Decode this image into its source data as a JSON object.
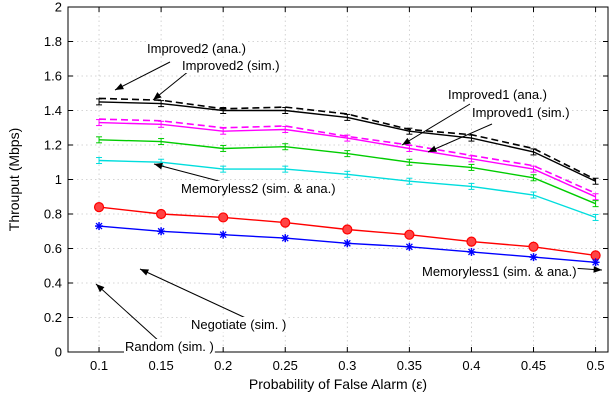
{
  "chart_data": {
    "type": "line",
    "title": "",
    "xlabel": "Probability of False Alarm (ε)",
    "ylabel": "Throuput (Mbps)",
    "xlim": [
      0.075,
      0.51
    ],
    "ylim": [
      0,
      2
    ],
    "x_ticks": [
      "0.1",
      "0.15",
      "0.2",
      "0.25",
      "0.3",
      "0.35",
      "0.4",
      "0.45",
      "0.5"
    ],
    "y_ticks": [
      "0",
      "0.2",
      "0.4",
      "0.6",
      "0.8",
      "1",
      "1.2",
      "1.4",
      "1.6",
      "1.8",
      "2"
    ],
    "grid": true,
    "x": [
      0.1,
      0.15,
      0.2,
      0.25,
      0.3,
      0.35,
      0.4,
      0.45,
      0.5
    ],
    "series": [
      {
        "name": "Improved2 (ana.)",
        "color": "#000000",
        "dash": "dashed",
        "marker": "none",
        "values": [
          1.47,
          1.46,
          1.41,
          1.42,
          1.38,
          1.29,
          1.26,
          1.18,
          1.0
        ]
      },
      {
        "name": "Improved2 (sim.)",
        "color": "#000000",
        "dash": "solid",
        "marker": "errorbar",
        "values": [
          1.45,
          1.44,
          1.4,
          1.4,
          1.36,
          1.28,
          1.24,
          1.16,
          0.99
        ]
      },
      {
        "name": "Improved1 (ana.)",
        "color": "#ff00ff",
        "dash": "dashed",
        "marker": "none",
        "values": [
          1.35,
          1.34,
          1.3,
          1.31,
          1.25,
          1.2,
          1.14,
          1.08,
          0.92
        ]
      },
      {
        "name": "Improved1 (sim.)",
        "color": "#ff00ff",
        "dash": "solid",
        "marker": "errorbar",
        "values": [
          1.33,
          1.32,
          1.28,
          1.29,
          1.24,
          1.18,
          1.12,
          1.06,
          0.9
        ]
      },
      {
        "name": "Memoryless2 (sim. & ana.)",
        "color": "#00cc00",
        "dash": "solid",
        "marker": "errorbar",
        "values": [
          1.23,
          1.22,
          1.18,
          1.19,
          1.15,
          1.1,
          1.07,
          1.01,
          0.86
        ]
      },
      {
        "name": "Memoryless1 (sim. & ana.)",
        "color": "#00dddd",
        "dash": "solid",
        "marker": "errorbar",
        "values": [
          1.11,
          1.1,
          1.06,
          1.06,
          1.03,
          0.99,
          0.96,
          0.91,
          0.78
        ]
      },
      {
        "name": "Negotiate (sim. )",
        "color": "#ff0000",
        "dash": "solid",
        "marker": "circle",
        "values": [
          0.84,
          0.8,
          0.78,
          0.75,
          0.71,
          0.68,
          0.64,
          0.61,
          0.56
        ]
      },
      {
        "name": "Random (sim. )",
        "color": "#0000ff",
        "dash": "solid",
        "marker": "star",
        "values": [
          0.73,
          0.7,
          0.68,
          0.66,
          0.63,
          0.61,
          0.58,
          0.55,
          0.52
        ]
      }
    ],
    "annotations": [
      {
        "text": "Improved2 (ana.)",
        "series": "Improved2 (ana.)",
        "x": 0.11
      },
      {
        "text": "Improved2 (sim.)",
        "series": "Improved2 (sim.)",
        "x": 0.155
      },
      {
        "text": "Improved1 (ana.)",
        "series": "Improved1 (ana.)",
        "x": 0.36
      },
      {
        "text": "Improved1 (sim.)",
        "series": "Improved1 (sim.)",
        "x": 0.4
      },
      {
        "text": "Memoryless2 (sim. & ana.)",
        "series": "Memoryless2 (sim. & ana.)",
        "x": 0.15
      },
      {
        "text": "Memoryless1 (sim. & ana.)",
        "series": "Memoryless1 (sim. & ana.)",
        "x": 0.5
      },
      {
        "text": "Negotiate (sim. )",
        "series": "Negotiate (sim. )",
        "x": 0.15
      },
      {
        "text": "Random (sim. )",
        "series": "Random (sim. )",
        "x": 0.1
      }
    ]
  }
}
